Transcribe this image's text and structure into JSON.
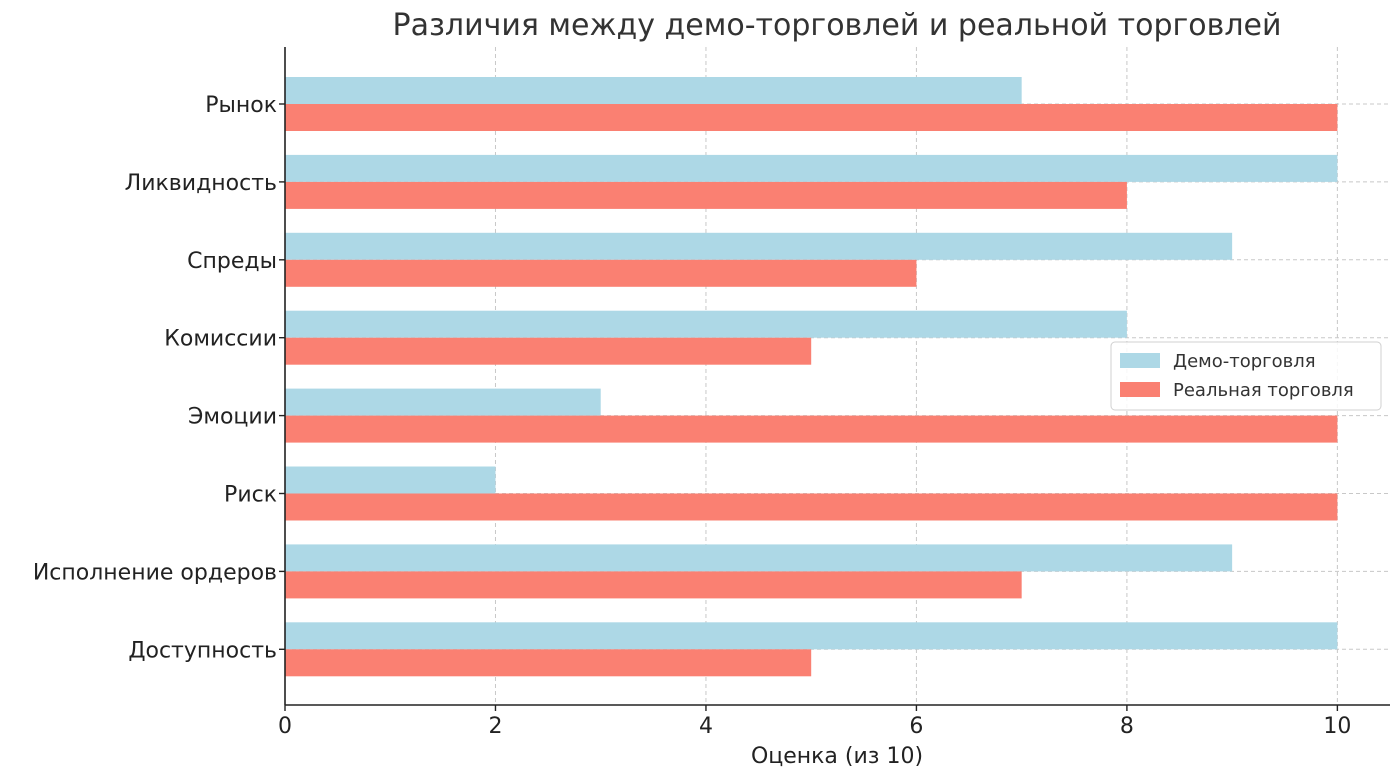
{
  "chart_data": {
    "type": "bar",
    "orientation": "horizontal",
    "title": "Различия между демо-торговлей и реальной торговлей",
    "xlabel": "Оценка (из 10)",
    "ylabel": "",
    "xlim": [
      0,
      10.5
    ],
    "xticks": [
      0,
      2,
      4,
      6,
      8,
      10
    ],
    "grid": true,
    "legend_position": "center-right",
    "categories": [
      "Рынок",
      "Ликвидность",
      "Спреды",
      "Комиссии",
      "Эмоции",
      "Риск",
      "Исполнение ордеров",
      "Доступность"
    ],
    "series": [
      {
        "name": "Демо-торговля",
        "color": "#add8e6",
        "values": [
          7,
          10,
          9,
          8,
          3,
          2,
          9,
          10
        ]
      },
      {
        "name": "Реальная торговля",
        "color": "#fa8072",
        "values": [
          10,
          8,
          6,
          5,
          10,
          10,
          7,
          5
        ]
      }
    ]
  }
}
